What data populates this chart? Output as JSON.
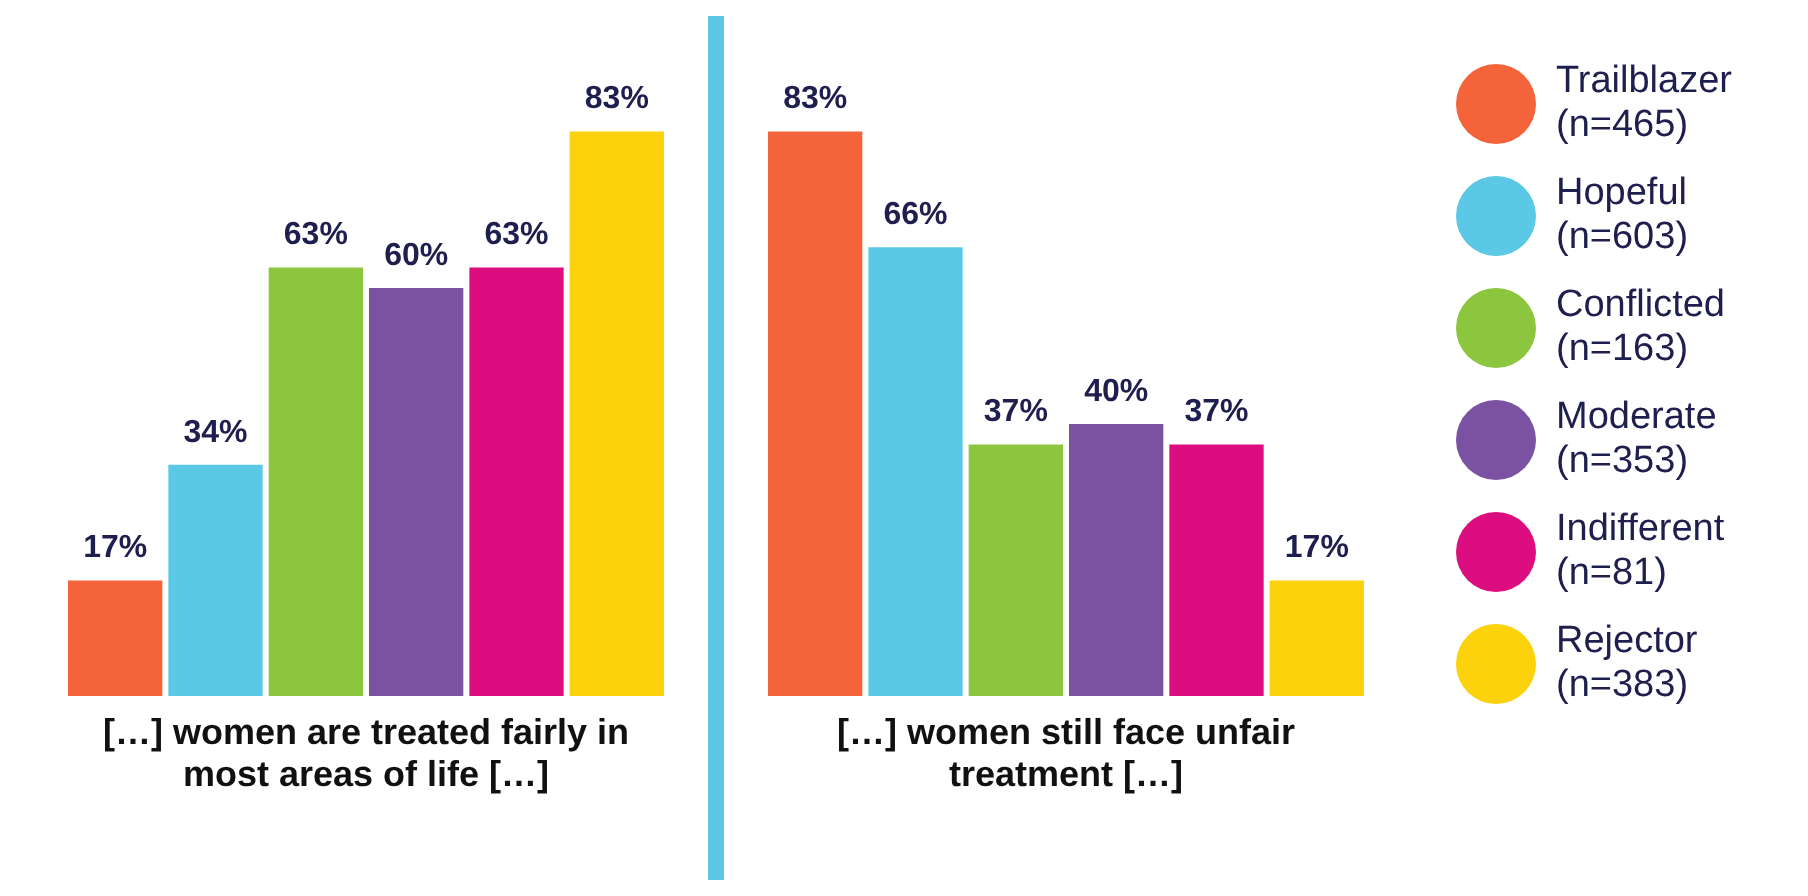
{
  "chart_data": {
    "type": "bar",
    "categories": [
      "[…] women are treated fairly in most areas of life […]",
      "[…] women still face unfair treatment […]"
    ],
    "legend": "right",
    "series": [
      {
        "name": "Trailblazer (n=465)",
        "color": "#f4633a",
        "values": [
          17,
          83
        ],
        "value_labels": [
          "17%",
          "83%"
        ]
      },
      {
        "name": "Hopeful (n=603)",
        "color": "#5bc9e6",
        "values": [
          34,
          66
        ],
        "value_labels": [
          "34%",
          "66%"
        ]
      },
      {
        "name": "Conflicted (n=163)",
        "color": "#8cc63f",
        "values": [
          63,
          37
        ],
        "value_labels": [
          "63%",
          "37%"
        ]
      },
      {
        "name": "Moderate (n=353)",
        "color": "#7b52a1",
        "values": [
          60,
          40
        ],
        "value_labels": [
          "60%",
          "40%"
        ]
      },
      {
        "name": "Indifferent (n=81)",
        "color": "#dc0e7f",
        "values": [
          63,
          37
        ],
        "value_labels": [
          "63%",
          "37%"
        ]
      },
      {
        "name": "Rejector (n=383)",
        "color": "#fbd20c",
        "values": [
          83,
          17
        ],
        "value_labels": [
          "83%",
          "17%"
        ]
      }
    ]
  }
}
